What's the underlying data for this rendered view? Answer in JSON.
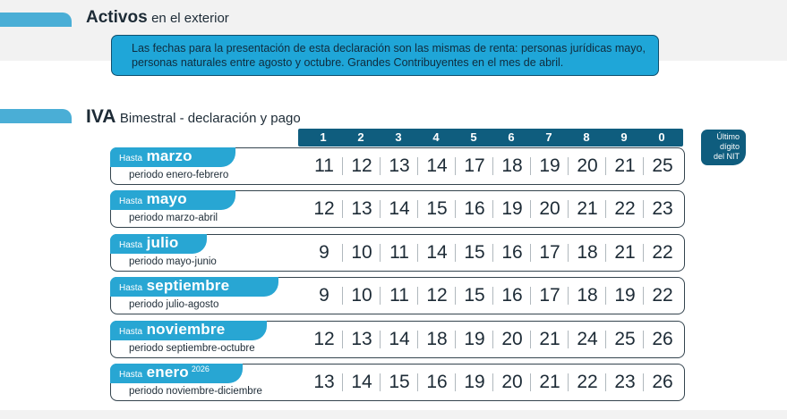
{
  "activos": {
    "title_bold": "Activos",
    "title_rest": "en el exterior"
  },
  "info": {
    "text": "Las fechas para la presentación de esta declaración son las mismas de renta: personas jurídicas mayo, personas naturales entre agosto y octubre. Grandes Contribuyentes en el mes de abril."
  },
  "iva": {
    "title_bold": "IVA",
    "title_rest": "Bimestral - declaración y pago"
  },
  "digits": [
    "1",
    "2",
    "3",
    "4",
    "5",
    "6",
    "7",
    "8",
    "9",
    "0"
  ],
  "nit_label": [
    "Último",
    "dígito",
    "del NIT"
  ],
  "colors": {
    "accent": "#28a6d3",
    "header": "#0f5d7e",
    "info_box": "#1fa6d8"
  },
  "rows": [
    {
      "hasta": "Hasta",
      "month": "marzo",
      "year": "",
      "periodo": "periodo enero-febrero",
      "dates": [
        "11",
        "12",
        "13",
        "14",
        "17",
        "18",
        "19",
        "20",
        "21",
        "25"
      ]
    },
    {
      "hasta": "Hasta",
      "month": "mayo",
      "year": "",
      "periodo": "periodo marzo-abril",
      "dates": [
        "12",
        "13",
        "14",
        "15",
        "16",
        "19",
        "20",
        "21",
        "22",
        "23"
      ]
    },
    {
      "hasta": "Hasta",
      "month": "julio",
      "year": "",
      "periodo": "periodo mayo-junio",
      "dates": [
        "9",
        "10",
        "11",
        "14",
        "15",
        "16",
        "17",
        "18",
        "21",
        "22"
      ]
    },
    {
      "hasta": "Hasta",
      "month": "septiembre",
      "year": "",
      "periodo": "periodo julio-agosto",
      "dates": [
        "9",
        "10",
        "11",
        "12",
        "15",
        "16",
        "17",
        "18",
        "19",
        "22"
      ]
    },
    {
      "hasta": "Hasta",
      "month": "noviembre",
      "year": "",
      "periodo": "periodo septiembre-octubre",
      "dates": [
        "12",
        "13",
        "14",
        "18",
        "19",
        "20",
        "21",
        "24",
        "25",
        "26"
      ]
    },
    {
      "hasta": "Hasta",
      "month": "enero",
      "year": "2026",
      "periodo": "periodo noviembre-diciembre",
      "dates": [
        "13",
        "14",
        "15",
        "16",
        "19",
        "20",
        "21",
        "22",
        "23",
        "26"
      ]
    }
  ]
}
